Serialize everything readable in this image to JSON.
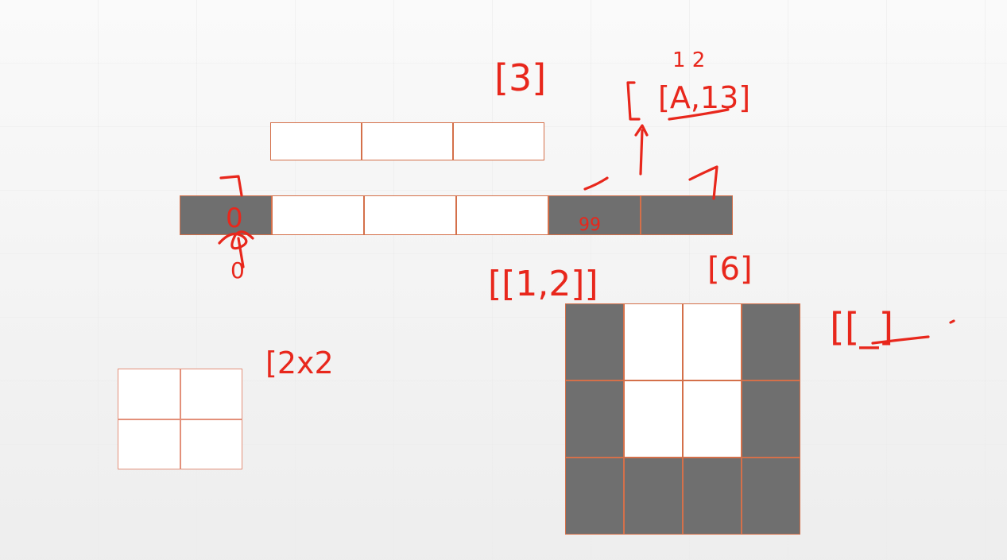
{
  "colors": {
    "filled": "#6f6f6f",
    "empty": "#ffffff",
    "border": "#d4704a",
    "ink": "#e8271c"
  },
  "grids": {
    "top_row": {
      "rows": 1,
      "cols": 3,
      "filled": []
    },
    "long_row": {
      "rows": 1,
      "cols": 6,
      "filled": [
        0,
        4,
        5
      ]
    },
    "small_grid": {
      "rows": 2,
      "cols": 2,
      "filled": []
    },
    "big_grid": {
      "rows": 3,
      "cols": 4,
      "filled": [
        0,
        3,
        4,
        7,
        8,
        9,
        10,
        11
      ]
    }
  },
  "annotations": {
    "top_size": "[3]",
    "pair": "[A,13]",
    "pair_indices": "1 2",
    "left_marks": "0",
    "bottom_zero": "0",
    "pos_value": "99",
    "list_pair": "[[1,2]]",
    "six": "[6]",
    "two_by_two": "[2x2",
    "nested_open": "[[_]"
  }
}
